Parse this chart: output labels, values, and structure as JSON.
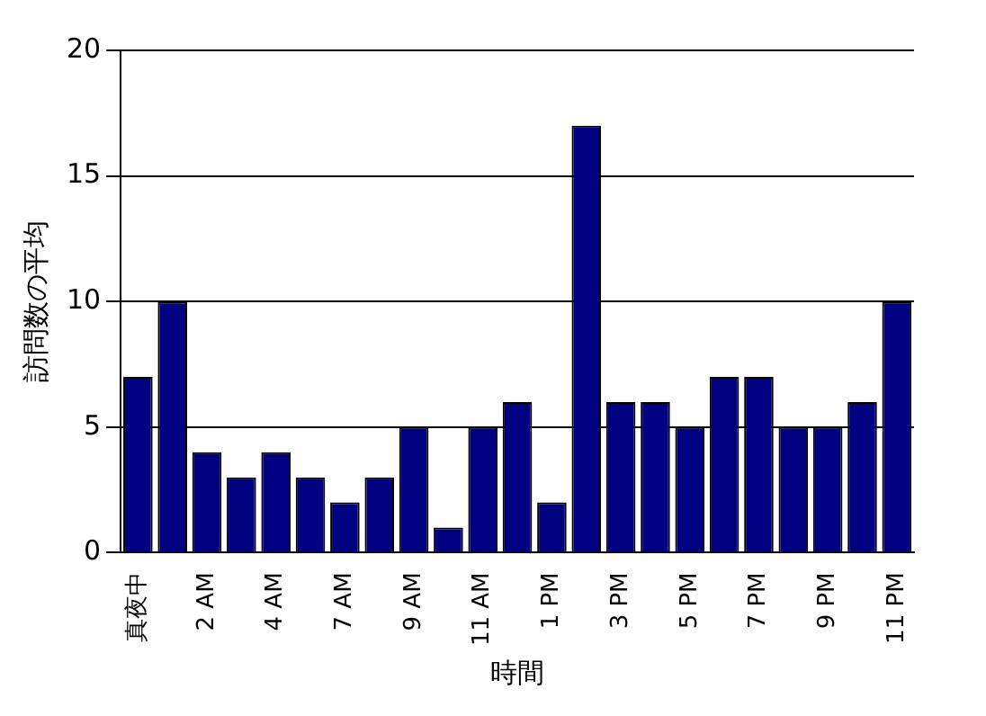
{
  "chart_data": {
    "type": "bar",
    "xlabel": "時間",
    "ylabel": "訪問数の平均",
    "categories": [
      "真夜中",
      null,
      "2 AM",
      null,
      "4 AM",
      null,
      "7 AM",
      null,
      "9 AM",
      null,
      "11 AM",
      null,
      "1 PM",
      null,
      "3 PM",
      null,
      "5 PM",
      null,
      "7 PM",
      null,
      "9 PM",
      null,
      "11 PM"
    ],
    "values": [
      7,
      10,
      4,
      3,
      4,
      3,
      2,
      3,
      5,
      1,
      5,
      6,
      2,
      17,
      6,
      6,
      5,
      7,
      7,
      5,
      5,
      6,
      10
    ],
    "color": "#000080",
    "ylim": [
      0,
      20
    ],
    "yticks": [
      0,
      5,
      10,
      15,
      20
    ],
    "grid": "y",
    "legend": false
  }
}
